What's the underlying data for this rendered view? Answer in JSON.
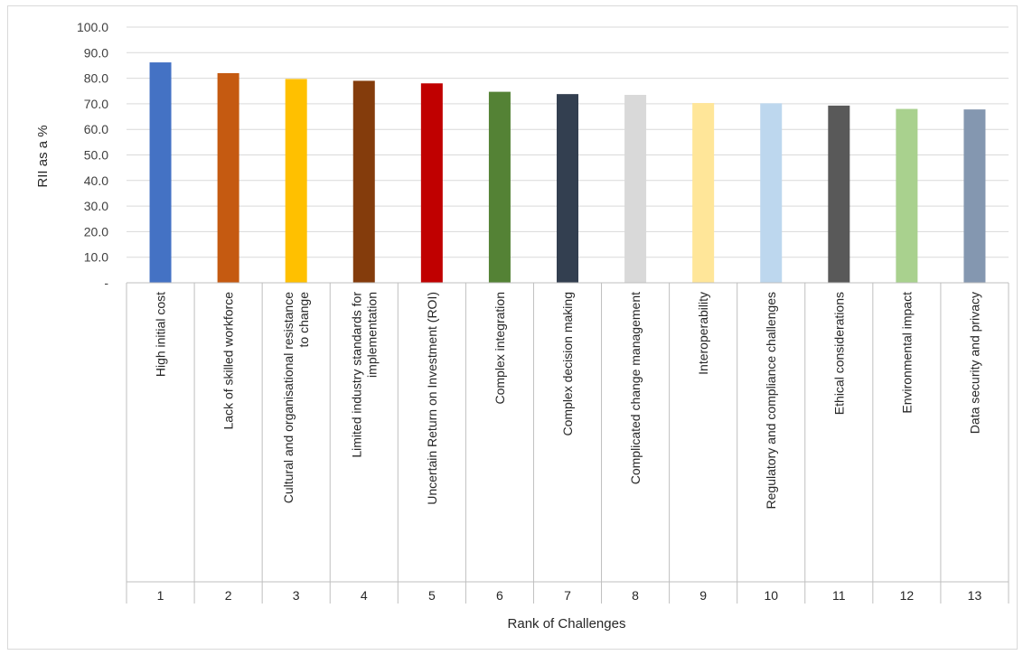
{
  "chart_data": {
    "type": "bar",
    "xlabel": "Rank of Challenges",
    "ylabel": "RII as a %",
    "ylim": [
      0,
      100
    ],
    "yticks": [
      "-",
      "10.0",
      "20.0",
      "30.0",
      "40.0",
      "50.0",
      "60.0",
      "70.0",
      "80.0",
      "90.0",
      "100.0"
    ],
    "grid": true,
    "categories": [
      {
        "rank": "1",
        "lines": [
          "High initial cost"
        ]
      },
      {
        "rank": "2",
        "lines": [
          "Lack of skilled workforce"
        ]
      },
      {
        "rank": "3",
        "lines": [
          "Cultural and organisational resistance",
          "to change"
        ]
      },
      {
        "rank": "4",
        "lines": [
          "Limited industry standards for",
          "implementation"
        ]
      },
      {
        "rank": "5",
        "lines": [
          "Uncertain Return on Investment (ROI)"
        ]
      },
      {
        "rank": "6",
        "lines": [
          "Complex integration"
        ]
      },
      {
        "rank": "7",
        "lines": [
          "Complex decision making"
        ]
      },
      {
        "rank": "8",
        "lines": [
          "Complicated change management"
        ]
      },
      {
        "rank": "9",
        "lines": [
          "Interoperability"
        ]
      },
      {
        "rank": "10",
        "lines": [
          "Regulatory and compliance challenges"
        ]
      },
      {
        "rank": "11",
        "lines": [
          "Ethical considerations"
        ]
      },
      {
        "rank": "12",
        "lines": [
          "Environmental impact"
        ]
      },
      {
        "rank": "13",
        "lines": [
          "Data security and privacy"
        ]
      }
    ],
    "values": [
      86.2,
      82.0,
      79.7,
      79.0,
      78.0,
      74.7,
      73.8,
      73.5,
      70.3,
      70.2,
      69.3,
      68.0,
      67.8
    ],
    "colors": [
      "#4472c4",
      "#c55a11",
      "#ffc000",
      "#843c0c",
      "#c00000",
      "#548235",
      "#333f50",
      "#d9d9d9",
      "#ffe699",
      "#bdd7ee",
      "#595959",
      "#a9d18e",
      "#8497b0"
    ]
  }
}
